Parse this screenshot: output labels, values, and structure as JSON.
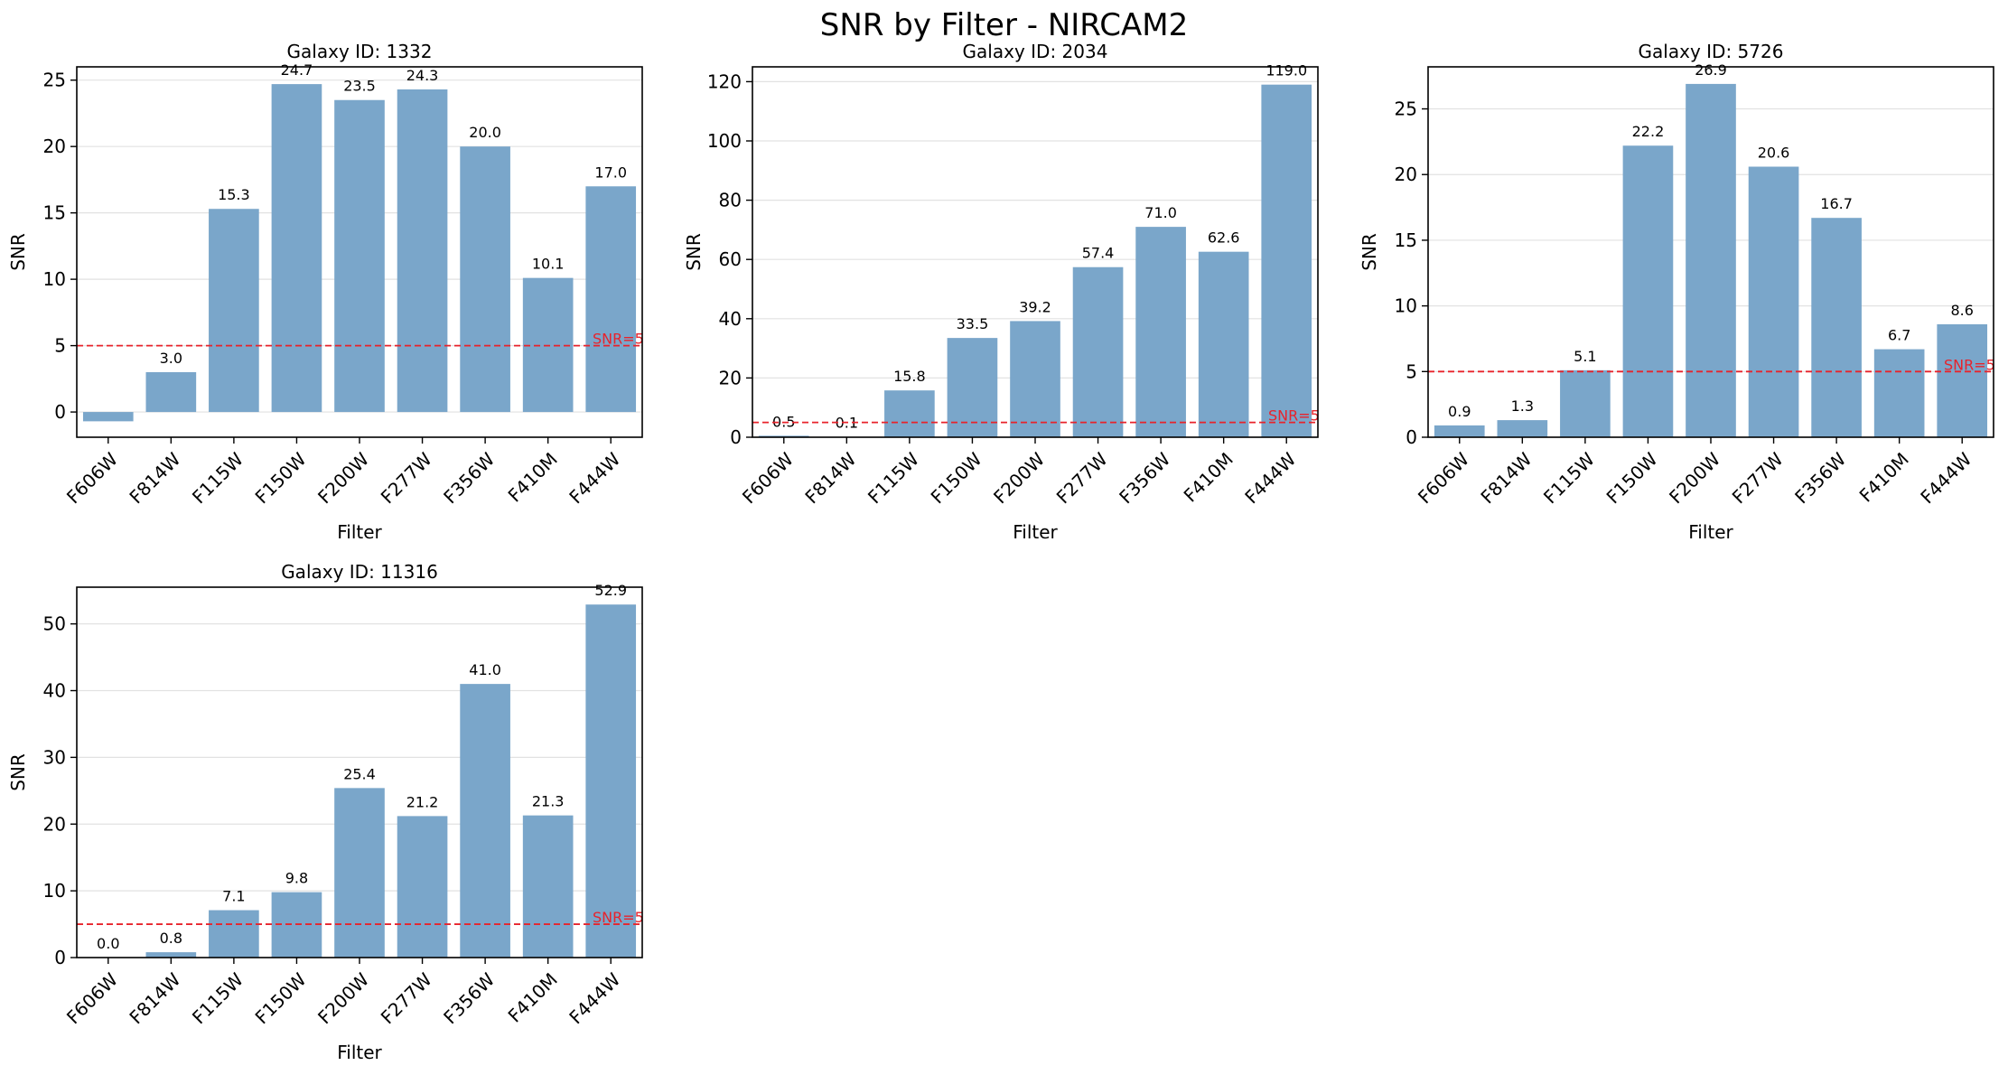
{
  "page": {
    "title": "SNR by Filter - NIRCAM2"
  },
  "colors": {
    "bar": "#7aa6ca",
    "threshold": "#e8232b",
    "grid": "#e2e2e2",
    "axis": "#000000"
  },
  "chart_data": [
    {
      "type": "bar",
      "title": "Galaxy ID: 1332",
      "xlabel": "Filter",
      "ylabel": "SNR",
      "categories": [
        "F606W",
        "F814W",
        "F115W",
        "F150W",
        "F200W",
        "F277W",
        "F356W",
        "F410M",
        "F444W"
      ],
      "values": [
        -0.7,
        3.0,
        15.3,
        24.7,
        23.5,
        24.3,
        20.0,
        10.1,
        17.0
      ],
      "value_labels": [
        "",
        "3.0",
        "15.3",
        "24.7",
        "23.5",
        "24.3",
        "20.0",
        "10.1",
        "17.0"
      ],
      "ylim": [
        -1.9,
        26.0
      ],
      "yticks": [
        0,
        5,
        10,
        15,
        20,
        25
      ],
      "ytick_labels": [
        "0",
        "5",
        "10",
        "15",
        "20",
        "25"
      ],
      "threshold": {
        "value": 5,
        "label": "SNR=5"
      },
      "grid": "y"
    },
    {
      "type": "bar",
      "title": "Galaxy ID: 2034",
      "xlabel": "Filter",
      "ylabel": "SNR",
      "categories": [
        "F606W",
        "F814W",
        "F115W",
        "F150W",
        "F200W",
        "F277W",
        "F356W",
        "F410M",
        "F444W"
      ],
      "values": [
        0.5,
        0.1,
        15.8,
        33.5,
        39.2,
        57.4,
        71.0,
        62.6,
        119.0
      ],
      "value_labels": [
        "0.5",
        "0.1",
        "15.8",
        "33.5",
        "39.2",
        "57.4",
        "71.0",
        "62.6",
        "119.0"
      ],
      "ylim": [
        0,
        125
      ],
      "yticks": [
        0,
        20,
        40,
        60,
        80,
        100,
        120
      ],
      "ytick_labels": [
        "0",
        "20",
        "40",
        "60",
        "80",
        "100",
        "120"
      ],
      "threshold": {
        "value": 5,
        "label": "SNR=5"
      },
      "grid": "y"
    },
    {
      "type": "bar",
      "title": "Galaxy ID: 5726",
      "xlabel": "Filter",
      "ylabel": "SNR",
      "categories": [
        "F606W",
        "F814W",
        "F115W",
        "F150W",
        "F200W",
        "F277W",
        "F356W",
        "F410M",
        "F444W"
      ],
      "values": [
        0.9,
        1.3,
        5.1,
        22.2,
        26.9,
        20.6,
        16.7,
        6.7,
        8.6
      ],
      "value_labels": [
        "0.9",
        "1.3",
        "5.1",
        "22.2",
        "26.9",
        "20.6",
        "16.7",
        "6.7",
        "8.6"
      ],
      "ylim": [
        0,
        28.2
      ],
      "yticks": [
        0,
        5,
        10,
        15,
        20,
        25
      ],
      "ytick_labels": [
        "0",
        "5",
        "10",
        "15",
        "20",
        "25"
      ],
      "threshold": {
        "value": 5,
        "label": "SNR=5"
      },
      "grid": "y"
    },
    {
      "type": "bar",
      "title": "Galaxy ID: 11316",
      "xlabel": "Filter",
      "ylabel": "SNR",
      "categories": [
        "F606W",
        "F814W",
        "F115W",
        "F150W",
        "F200W",
        "F277W",
        "F356W",
        "F410M",
        "F444W"
      ],
      "values": [
        0.0,
        0.8,
        7.1,
        9.8,
        25.4,
        21.2,
        41.0,
        21.3,
        52.9
      ],
      "value_labels": [
        "0.0",
        "0.8",
        "7.1",
        "9.8",
        "25.4",
        "21.2",
        "41.0",
        "21.3",
        "52.9"
      ],
      "ylim": [
        0,
        55.5
      ],
      "yticks": [
        0,
        10,
        20,
        30,
        40,
        50
      ],
      "ytick_labels": [
        "0",
        "10",
        "20",
        "30",
        "40",
        "50"
      ],
      "threshold": {
        "value": 5,
        "label": "SNR=5"
      },
      "grid": "y"
    }
  ]
}
